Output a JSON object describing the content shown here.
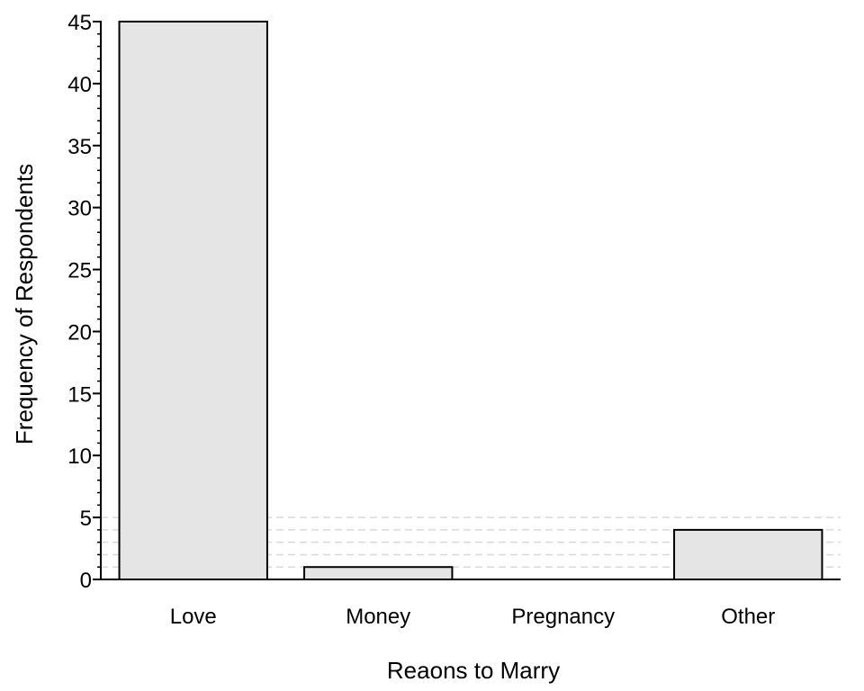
{
  "chart_data": {
    "type": "bar",
    "title": "",
    "xlabel": "Reaons to Marry",
    "ylabel": "Frequency of Respondents",
    "categories": [
      "Love",
      "Money",
      "Pregnancy",
      "Other"
    ],
    "values": [
      45,
      1,
      0,
      4
    ],
    "ylim": [
      0,
      45
    ],
    "y_ticks": [
      "0",
      "5",
      "10",
      "15",
      "20",
      "25",
      "30",
      "35",
      "40",
      "45"
    ],
    "y_minor_step": 1,
    "reference_lines": [
      1,
      2,
      3,
      4,
      5
    ],
    "grid": false,
    "legend": "none",
    "colors": {
      "bar_fill": "#e5e5e5",
      "bar_stroke": "#000000",
      "axis": "#000000",
      "reference_line": "#d9d9d9"
    }
  }
}
